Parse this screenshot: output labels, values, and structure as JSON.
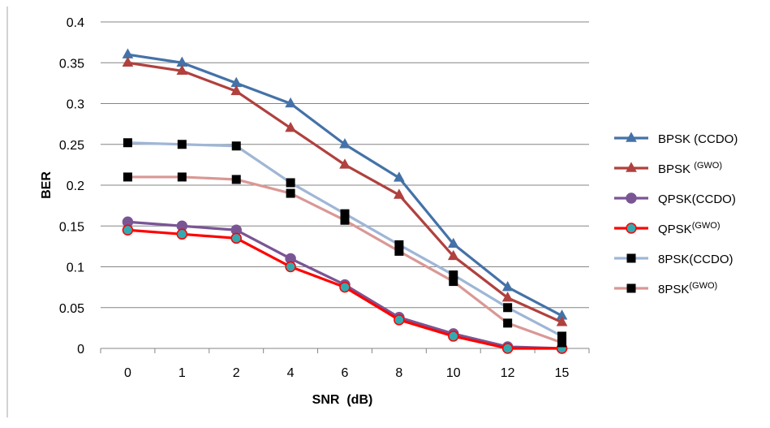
{
  "chart_data": {
    "type": "line",
    "title": "",
    "xlabel": "SNR  (dB)",
    "ylabel": "BER",
    "categories": [
      "0",
      "1",
      "2",
      "4",
      "6",
      "8",
      "10",
      "12",
      "15"
    ],
    "ylim": [
      0,
      0.4
    ],
    "yticks": [
      "0",
      "0.05",
      "0.1",
      "0.15",
      "0.2",
      "0.25",
      "0.3",
      "0.35",
      "0.4"
    ],
    "grid": "horizontal",
    "legend_position": "right",
    "series": [
      {
        "name": "BPSK (CCDO)",
        "legend_main": "BPSK (CCDO)",
        "legend_sup": "",
        "color": "#4472a8",
        "marker": "triangle",
        "marker_fill": "#4472a8",
        "values": [
          0.36,
          0.35,
          0.325,
          0.3,
          0.25,
          0.209,
          0.128,
          0.075,
          0.04
        ]
      },
      {
        "name": "BPSK (GWO)",
        "legend_main": "BPSK ",
        "legend_sup": "(GWO)",
        "color": "#b0413e",
        "marker": "triangle",
        "marker_fill": "#b0413e",
        "values": [
          0.35,
          0.34,
          0.315,
          0.27,
          0.225,
          0.188,
          0.113,
          0.062,
          0.032
        ]
      },
      {
        "name": "QPSK(CCDO)",
        "legend_main": "QPSK(CCDO)",
        "legend_sup": "",
        "color": "#7a5594",
        "marker": "circle",
        "marker_fill": "#7a5594",
        "values": [
          0.155,
          0.15,
          0.145,
          0.11,
          0.078,
          0.038,
          0.018,
          0.002,
          0.0
        ]
      },
      {
        "name": "QPSK(GWO)",
        "legend_main": "QPSK",
        "legend_sup": "(GWO)",
        "color": "#ff0000",
        "marker": "circle",
        "marker_fill": "#33aab0",
        "values": [
          0.145,
          0.14,
          0.135,
          0.1,
          0.075,
          0.035,
          0.015,
          0.0,
          0.0
        ]
      },
      {
        "name": "8PSK(CCDO)",
        "legend_main": "8PSK(CCDO)",
        "legend_sup": "",
        "color": "#9fb6d6",
        "marker": "square",
        "marker_fill": "#000000",
        "values": [
          0.252,
          0.25,
          0.248,
          0.203,
          0.165,
          0.127,
          0.09,
          0.05,
          0.015
        ]
      },
      {
        "name": "8PSK(GWO)",
        "legend_main": "8PSK",
        "legend_sup": "(GWO)",
        "color": "#d99895",
        "marker": "square",
        "marker_fill": "#000000",
        "values": [
          0.21,
          0.21,
          0.207,
          0.19,
          0.157,
          0.119,
          0.082,
          0.031,
          0.007
        ]
      }
    ]
  }
}
